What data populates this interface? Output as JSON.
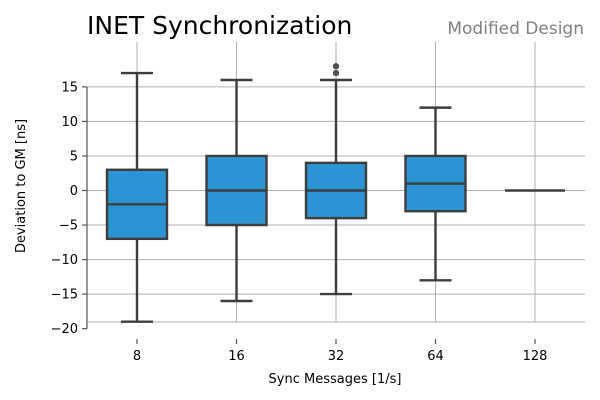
{
  "chart_data": {
    "type": "box",
    "title": "INET Synchronization",
    "subtitle": "Modified Design",
    "xlabel": "Sync Messages [1/s]",
    "ylabel": "Deviation to GM [ns]",
    "ylim": [
      -21.5,
      21.5
    ],
    "yticks": [
      -20,
      -15,
      -10,
      -5,
      0,
      5,
      10,
      15
    ],
    "grid": true,
    "categories": [
      "8",
      "16",
      "32",
      "64",
      "128"
    ],
    "boxes": [
      {
        "category": "8",
        "whisker_low": -19,
        "q1": -7,
        "median": -2,
        "q3": 3,
        "whisker_high": 17,
        "outliers": []
      },
      {
        "category": "16",
        "whisker_low": -16,
        "q1": -5,
        "median": 0,
        "q3": 5,
        "whisker_high": 16,
        "outliers": []
      },
      {
        "category": "32",
        "whisker_low": -15,
        "q1": -4,
        "median": 0,
        "q3": 4,
        "whisker_high": 16,
        "outliers": [
          17,
          18
        ]
      },
      {
        "category": "64",
        "whisker_low": -13,
        "q1": -3,
        "median": 1,
        "q3": 5,
        "whisker_high": 12,
        "outliers": []
      },
      {
        "category": "128",
        "whisker_low": 0,
        "q1": 0,
        "median": 0,
        "q3": 0,
        "whisker_high": 0,
        "outliers": []
      }
    ],
    "colors": {
      "box_fill": "#2b95d3",
      "box_edge": "#3d3d3d",
      "grid": "#b0b0b0",
      "axis": "#555555"
    }
  }
}
